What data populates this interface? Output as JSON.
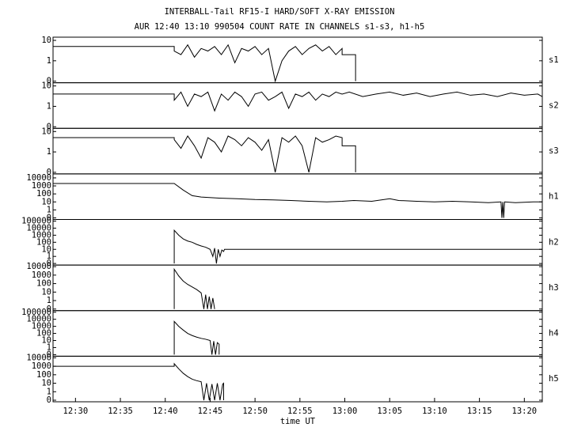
{
  "chart_data": [
    {
      "type": "line",
      "title": "INTERBALL-Tail RF15-I HARD/SOFT X-RAY EMISSION",
      "subtitle": "AUR 12:40 13:10 990504  COUNT RATE IN CHANNELS s1-s3, h1-h5",
      "ylabel": "s1",
      "log": true,
      "color": "#000000",
      "xlim": [
        747.5,
        802
      ],
      "ylim": [
        0.1,
        12
      ],
      "yticks": [
        {
          "value": 0.1,
          "label": "0"
        },
        1,
        10
      ],
      "x": [
        747.5,
        761.0,
        761.0,
        761.75,
        762.5,
        763.25,
        764.0,
        764.75,
        765.5,
        766.25,
        767.0,
        767.75,
        768.5,
        769.25,
        770.0,
        770.75,
        771.5,
        772.25,
        773.0,
        773.75,
        774.5,
        775.25,
        776.0,
        776.75,
        777.5,
        778.25,
        779.0,
        779.7,
        779.7,
        781.2,
        781.2
      ],
      "values": [
        5,
        5,
        3,
        2,
        6,
        1.5,
        4,
        3,
        5,
        2,
        6,
        0.8,
        4,
        3,
        5,
        2,
        4,
        0.1,
        1,
        3,
        5,
        2,
        4,
        6,
        3,
        5,
        2,
        4,
        2,
        2,
        0.1
      ]
    },
    {
      "type": "line",
      "ylabel": "s2",
      "log": true,
      "color": "#000000",
      "xlim": [
        747.5,
        802
      ],
      "ylim": [
        0.1,
        12
      ],
      "yticks": [
        {
          "value": 0.1,
          "label": "0"
        },
        1,
        10
      ],
      "x": [
        747.5,
        761.0,
        761.0,
        761.75,
        762.5,
        763.25,
        764.0,
        764.75,
        765.5,
        766.25,
        767.0,
        767.75,
        768.5,
        769.25,
        770.0,
        770.75,
        771.5,
        772.25,
        773.0,
        773.75,
        774.5,
        775.25,
        776.0,
        776.75,
        777.5,
        778.25,
        779.0,
        779.7,
        780.5,
        782.0,
        783.5,
        785.0,
        786.5,
        788.0,
        789.5,
        791.0,
        792.5,
        794.0,
        795.5,
        797.0,
        798.5,
        800.0,
        801.5,
        802.0
      ],
      "values": [
        4,
        4,
        2,
        5,
        1,
        4,
        3,
        5,
        0.6,
        4,
        2,
        5,
        3,
        1,
        4,
        5,
        2,
        3,
        5,
        0.8,
        4,
        3,
        5,
        2,
        4,
        3,
        5,
        4,
        5,
        3,
        4,
        5,
        3.5,
        4.5,
        3,
        4,
        5,
        3.5,
        4,
        3,
        4.5,
        3.5,
        4,
        3
      ]
    },
    {
      "type": "line",
      "ylabel": "s3",
      "log": true,
      "color": "#000000",
      "xlim": [
        747.5,
        802
      ],
      "ylim": [
        0.1,
        12
      ],
      "yticks": [
        {
          "value": 0.1,
          "label": "0"
        },
        1,
        10
      ],
      "x": [
        747.5,
        761.0,
        761.0,
        761.75,
        762.5,
        763.25,
        764.0,
        764.75,
        765.5,
        766.25,
        767.0,
        767.75,
        768.5,
        769.25,
        770.0,
        770.75,
        771.5,
        772.25,
        773.0,
        773.75,
        774.5,
        775.25,
        776.0,
        776.75,
        777.5,
        778.25,
        779.0,
        779.7,
        779.7,
        781.2,
        781.2
      ],
      "values": [
        5,
        5,
        4,
        1.5,
        6,
        2,
        0.5,
        5,
        3,
        1,
        6,
        4,
        2,
        5,
        3,
        1.2,
        4,
        0.1,
        5,
        3,
        6,
        2,
        0.1,
        5,
        3,
        4,
        6,
        5,
        2,
        2,
        0.1
      ]
    },
    {
      "type": "line",
      "ylabel": "h1",
      "log": true,
      "color": "#000000",
      "xlim": [
        747.5,
        802
      ],
      "ylim": [
        0.1,
        20000
      ],
      "yticks": [
        {
          "value": 0.1,
          "label": "0"
        },
        1,
        10,
        100,
        1000,
        10000
      ],
      "x": [
        747.5,
        761.0,
        762.0,
        763.0,
        764.0,
        766.0,
        768.0,
        770.0,
        772.0,
        774.0,
        776.0,
        778.0,
        779.7,
        781.0,
        783.0,
        785.0,
        786.0,
        788.0,
        790.0,
        792.0,
        794.0,
        796.0,
        797.4,
        797.5,
        797.6,
        797.7,
        797.8,
        799.0,
        801.0,
        802.0
      ],
      "values": [
        2000,
        2000,
        300,
        60,
        40,
        30,
        25,
        20,
        18,
        15,
        12,
        10,
        12,
        15,
        12,
        25,
        15,
        12,
        10,
        12,
        10,
        8,
        10,
        0.1,
        10,
        0.1,
        10,
        8,
        10,
        10
      ]
    },
    {
      "type": "line",
      "ylabel": "h2",
      "log": true,
      "color": "#000000",
      "xlim": [
        747.5,
        802
      ],
      "ylim": [
        0.1,
        100000
      ],
      "yticks": [
        {
          "value": 0.1,
          "label": "0"
        },
        1,
        10,
        100,
        1000,
        10000,
        100000
      ],
      "x": [
        761.0,
        761.0,
        761.5,
        762.0,
        762.5,
        763.0,
        763.5,
        764.0,
        764.5,
        765.0,
        765.3,
        765.5,
        765.7,
        765.9,
        766.1,
        766.3,
        766.5,
        766.6,
        802.0
      ],
      "values": [
        0.1,
        5000,
        1000,
        300,
        150,
        100,
        50,
        30,
        20,
        10,
        1,
        15,
        0.1,
        10,
        1,
        8,
        5,
        10,
        10
      ]
    },
    {
      "type": "line",
      "ylabel": "h3",
      "log": true,
      "color": "#000000",
      "xlim": [
        747.5,
        802
      ],
      "ylim": [
        0.1,
        10000
      ],
      "yticks": [
        {
          "value": 0.1,
          "label": "0"
        },
        1,
        10,
        100,
        1000,
        10000
      ],
      "x": [
        761.0,
        761.0,
        761.5,
        762.0,
        762.5,
        763.0,
        763.5,
        764.0,
        764.3,
        764.5,
        764.7,
        764.9,
        765.1,
        765.3,
        765.5
      ],
      "values": [
        0.1,
        5000,
        800,
        200,
        80,
        40,
        20,
        8,
        0.1,
        5,
        0.1,
        3,
        0.1,
        2,
        0.1
      ]
    },
    {
      "type": "line",
      "ylabel": "h4",
      "log": true,
      "color": "#000000",
      "xlim": [
        747.5,
        802
      ],
      "ylim": [
        0.1,
        100000
      ],
      "yticks": [
        {
          "value": 0.1,
          "label": "0"
        },
        1,
        10,
        100,
        1000,
        10000,
        100000
      ],
      "x": [
        761.0,
        761.0,
        761.5,
        762.0,
        762.5,
        763.0,
        763.5,
        764.0,
        764.5,
        765.0,
        765.2,
        765.4,
        765.6,
        765.8,
        766.0,
        766.0
      ],
      "values": [
        0.1,
        5000,
        1000,
        300,
        100,
        50,
        30,
        20,
        15,
        10,
        0.1,
        8,
        0.1,
        5,
        3,
        0.1
      ]
    },
    {
      "type": "line",
      "ylabel": "h5",
      "log": true,
      "color": "#000000",
      "xlim": [
        747.5,
        802
      ],
      "ylim": [
        0.1,
        10000
      ],
      "yticks": [
        {
          "value": 0.1,
          "label": "0"
        },
        1,
        10,
        100,
        1000,
        10000
      ],
      "xlabel": "time UT",
      "xticks": [
        {
          "value": 750,
          "label": "12:30"
        },
        {
          "value": 755,
          "label": "12:35"
        },
        {
          "value": 760,
          "label": "12:40"
        },
        {
          "value": 765,
          "label": "12:45"
        },
        {
          "value": 770,
          "label": "12:50"
        },
        {
          "value": 775,
          "label": "12:55"
        },
        {
          "value": 780,
          "label": "13:00"
        },
        {
          "value": 785,
          "label": "13:05"
        },
        {
          "value": 790,
          "label": "13:10"
        },
        {
          "value": 795,
          "label": "13:15"
        },
        {
          "value": 800,
          "label": "13:20"
        }
      ],
      "x": [
        747.5,
        761.0,
        761.0,
        761.5,
        762.0,
        762.5,
        763.0,
        763.5,
        764.0,
        764.3,
        764.6,
        764.9,
        765.2,
        765.5,
        765.8,
        766.1,
        766.4,
        766.5,
        766.5
      ],
      "values": [
        1000,
        1000,
        2000,
        500,
        150,
        60,
        30,
        20,
        15,
        0.1,
        10,
        0.1,
        8,
        0.1,
        10,
        0.1,
        8,
        10,
        0.1
      ]
    }
  ]
}
